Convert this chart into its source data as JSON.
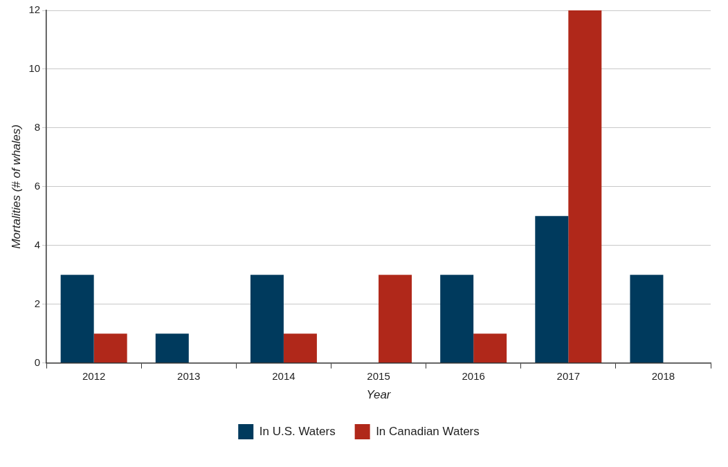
{
  "chart_data": {
    "type": "bar",
    "xlabel": "Year",
    "ylabel": "Mortalities (# of whales)",
    "categories": [
      "2012",
      "2013",
      "2014",
      "2015",
      "2016",
      "2017",
      "2018"
    ],
    "series": [
      {
        "name": "In U.S. Waters",
        "color": "#003a5d",
        "values": [
          3,
          1,
          3,
          0,
          3,
          5,
          3
        ]
      },
      {
        "name": "In Canadian Waters",
        "color": "#b0281a",
        "values": [
          1,
          0,
          1,
          3,
          1,
          12,
          0
        ]
      }
    ],
    "ylim": [
      0,
      12
    ],
    "yticks": [
      0,
      2,
      4,
      6,
      8,
      10,
      12
    ],
    "grid": "y",
    "legend": "bottom"
  }
}
